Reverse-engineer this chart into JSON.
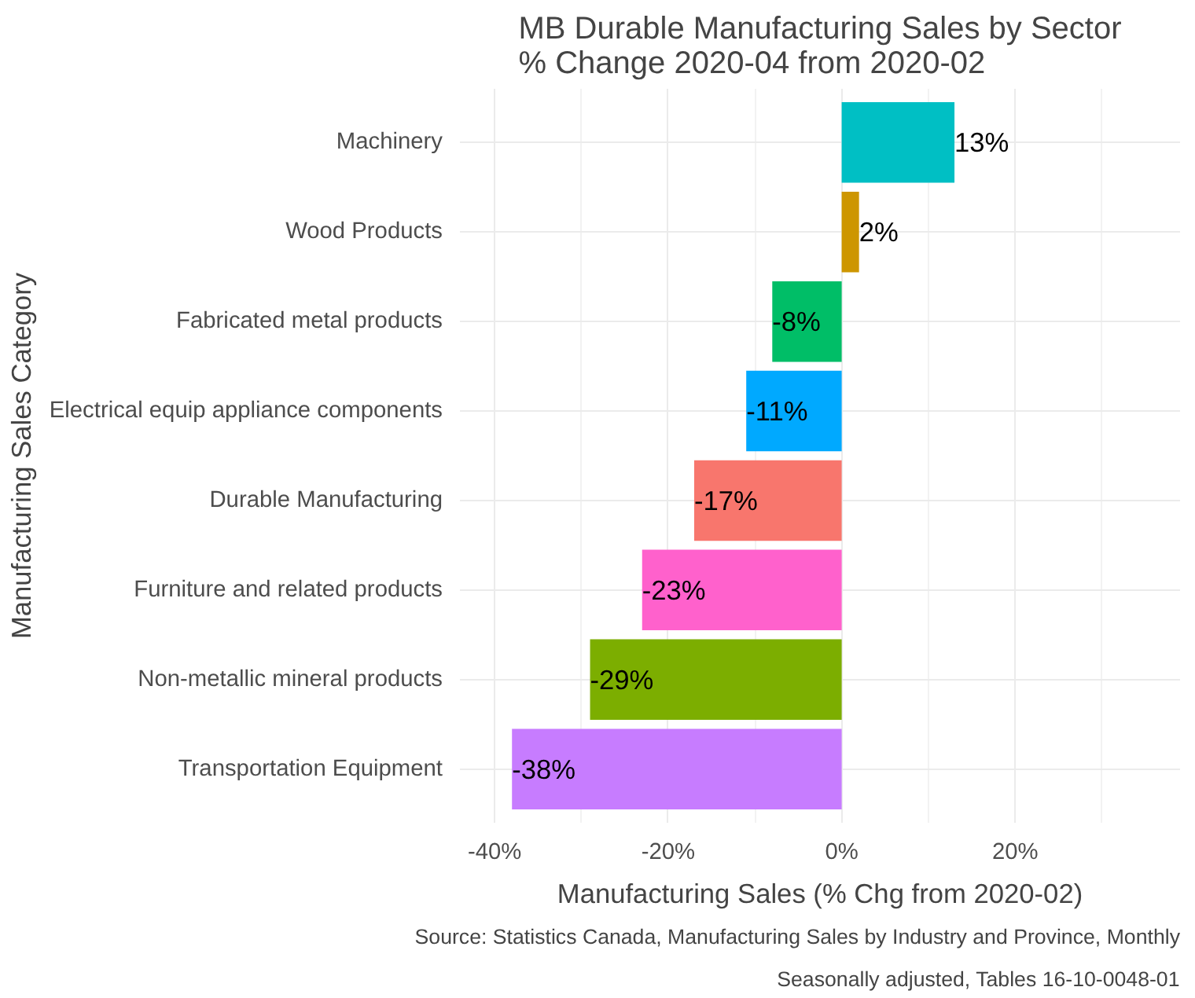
{
  "chart_data": {
    "type": "bar",
    "orientation": "horizontal",
    "title": "MB Durable Manufacturing Sales by Sector\n % Change 2020-04 from 2020-02",
    "xlabel": "Manufacturing Sales (% Chg from 2020-02)",
    "ylabel": "Manufacturing Sales Category",
    "categories": [
      "Machinery",
      "Wood Products",
      "Fabricated metal products",
      "Electrical equip appliance components",
      "Durable Manufacturing",
      "Furniture and related products",
      "Non-metallic mineral products",
      "Transportation Equipment"
    ],
    "values": [
      13,
      2,
      -8,
      -11,
      -17,
      -23,
      -29,
      -38
    ],
    "value_labels": [
      "13%",
      "2%",
      "-8%",
      "-11%",
      "-17%",
      "-23%",
      "-29%",
      "-38%"
    ],
    "colors": [
      "#00bfc4",
      "#cd9600",
      "#00be67",
      "#00a9ff",
      "#f8766d",
      "#ff61cc",
      "#7cae00",
      "#c77cff"
    ],
    "xlim": [
      -44,
      39
    ],
    "xticks": [
      {
        "value": -40,
        "label": "-40%"
      },
      {
        "value": -20,
        "label": "-20%"
      },
      {
        "value": 0,
        "label": "0%"
      },
      {
        "value": 20,
        "label": "20%"
      }
    ],
    "grid": true,
    "annotations": [
      "Source: Statistics Canada, Manufacturing Sales by Industry and Province, Monthly",
      "Seasonally adjusted, Tables 16-10-0048-01"
    ]
  }
}
